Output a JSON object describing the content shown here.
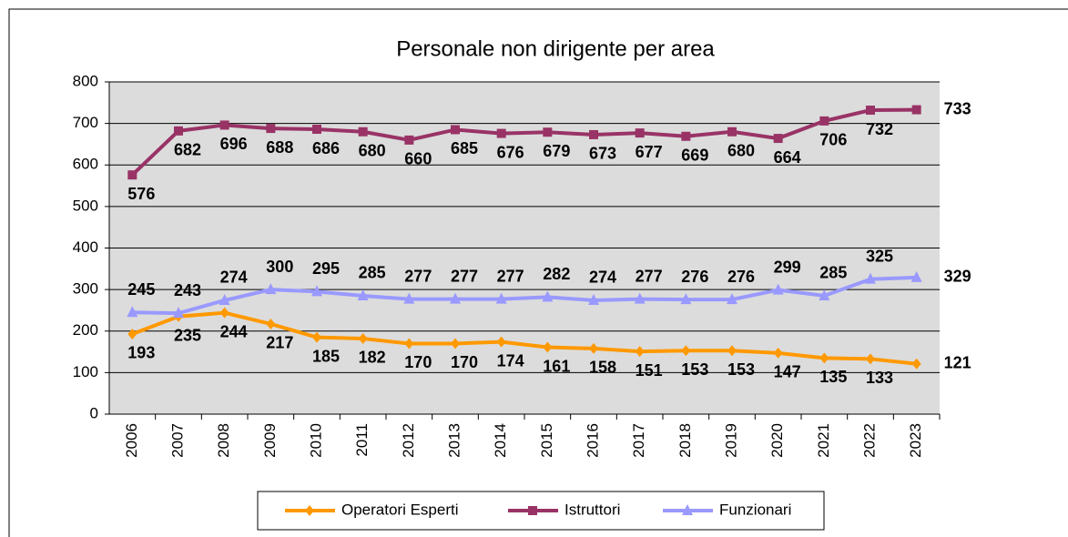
{
  "chart_data": {
    "type": "line",
    "title": "Personale non dirigente per area",
    "categories": [
      "2006",
      "2007",
      "2008",
      "2009",
      "2010",
      "2011",
      "2012",
      "2013",
      "2014",
      "2015",
      "2016",
      "2017",
      "2018",
      "2019",
      "2020",
      "2021",
      "2022",
      "2023"
    ],
    "series": [
      {
        "name": "Operatori Esperti",
        "color": "#ff9900",
        "marker": "diamond",
        "values": [
          193,
          235,
          244,
          217,
          185,
          182,
          170,
          170,
          174,
          161,
          158,
          151,
          153,
          153,
          147,
          135,
          133,
          121
        ]
      },
      {
        "name": "Istruttori",
        "color": "#993366",
        "marker": "square",
        "values": [
          576,
          682,
          696,
          688,
          686,
          680,
          660,
          685,
          676,
          679,
          673,
          677,
          669,
          680,
          664,
          706,
          732,
          733
        ]
      },
      {
        "name": "Funzionari",
        "color": "#9999ff",
        "marker": "triangle",
        "values": [
          245,
          243,
          274,
          300,
          295,
          285,
          277,
          277,
          277,
          282,
          274,
          277,
          276,
          276,
          299,
          285,
          325,
          329
        ]
      }
    ],
    "ylim": [
      0,
      800
    ],
    "yticks": [
      0,
      100,
      200,
      300,
      400,
      500,
      600,
      700,
      800
    ],
    "grid": true,
    "legend": "bottom"
  }
}
